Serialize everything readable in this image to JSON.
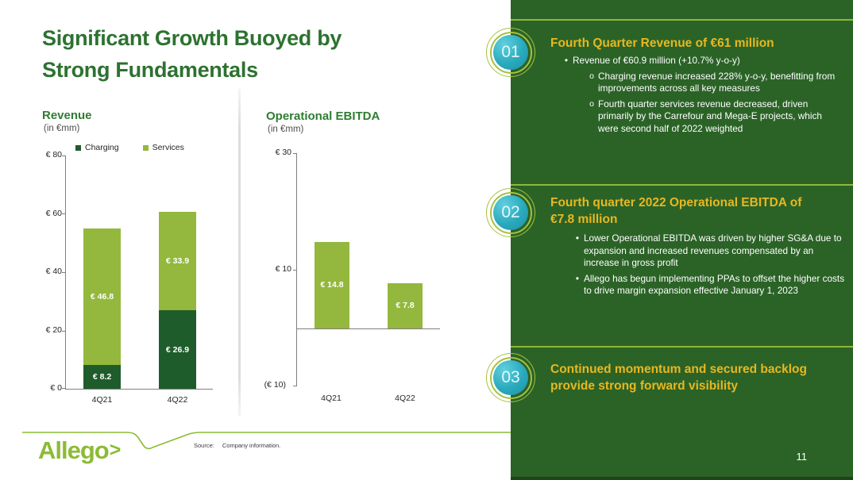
{
  "slide": {
    "title_line1": "Significant Growth Buoyed by",
    "title_line2": "Strong Fundamentals",
    "page_number": "11",
    "source_label": "Source:",
    "source_text": "Company information.",
    "logo_text": "Allego",
    "logo_arrow": ">"
  },
  "colors": {
    "panel_green": "#2b6327",
    "divider_green": "#8fb83a",
    "heading_gold": "#e9b71f",
    "title_green": "#2d7230",
    "charging_dark_green": "#1f5c2b",
    "services_light_green": "#93b83d",
    "circle_teal": "#2aa9bd",
    "ring_green": "#a6c23f",
    "logo_green": "#8cbb35"
  },
  "chart_data": [
    {
      "type": "bar",
      "stacked": true,
      "title": "Revenue",
      "subtitle": "(in €mm)",
      "categories": [
        "4Q21",
        "4Q22"
      ],
      "series": [
        {
          "name": "Charging",
          "color": "#1f5c2b",
          "values": [
            8.2,
            26.9
          ],
          "labels": [
            "€ 8.2",
            "€ 26.9"
          ]
        },
        {
          "name": "Services",
          "color": "#93b83d",
          "values": [
            46.8,
            33.9
          ],
          "labels": [
            "€ 46.8",
            "€ 33.9"
          ]
        }
      ],
      "totals": [
        55.0,
        60.8
      ],
      "ylabel": "",
      "ylim": [
        0,
        80
      ],
      "y_ticks": [
        "€ 80",
        "€ 60",
        "€ 40",
        "€ 20",
        "€ 0"
      ],
      "legend_position": "top",
      "grid": false
    },
    {
      "type": "bar",
      "stacked": false,
      "title": "Operational EBITDA",
      "subtitle": "(in €mm)",
      "categories": [
        "4Q21",
        "4Q22"
      ],
      "values": [
        14.8,
        7.8
      ],
      "labels": [
        "€ 14.8",
        "€ 7.8"
      ],
      "bar_color": "#93b83d",
      "ylabel": "",
      "ylim": [
        -10,
        30
      ],
      "y_ticks": [
        "€ 30",
        "€ 10",
        "(€ 10)"
      ],
      "grid": false
    }
  ],
  "panel": {
    "sections": [
      {
        "number": "01",
        "heading": "Fourth Quarter Revenue of €61 million",
        "bullets": [
          {
            "text": "Revenue of €60.9 million (+10.7% y-o-y)",
            "sub": [
              "Charging revenue increased 228% y-o-y, benefitting from improvements across all key measures",
              "Fourth quarter services revenue decreased, driven primarily by the Carrefour and Mega-E projects, which were second half of 2022 weighted"
            ]
          }
        ]
      },
      {
        "number": "02",
        "heading": "Fourth quarter 2022 Operational EBITDA of €7.8 million",
        "bullets": [
          {
            "text": "Lower Operational EBITDA was driven by higher SG&A due to expansion and increased revenues compensated by an increase in gross profit",
            "sub": []
          },
          {
            "text": "Allego has begun implementing PPAs to offset the higher costs to drive margin expansion effective January 1, 2023",
            "sub": []
          }
        ]
      },
      {
        "number": "03",
        "heading": "Continued momentum and secured backlog provide strong forward visibility",
        "bullets": []
      }
    ]
  }
}
